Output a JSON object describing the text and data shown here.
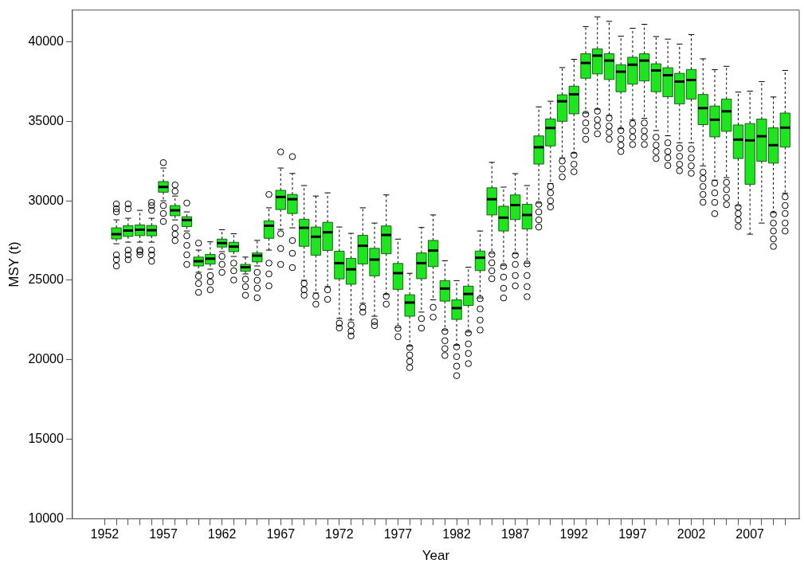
{
  "chart_data": {
    "type": "box",
    "xlabel": "Year",
    "ylabel": "MSY (t)",
    "color": "#1ee61e",
    "categories": [
      "1952",
      null,
      null,
      null,
      null,
      "1957",
      null,
      null,
      null,
      null,
      "1962",
      null,
      null,
      null,
      null,
      "1967",
      null,
      null,
      null,
      null,
      "1972",
      null,
      null,
      null,
      null,
      "1977",
      null,
      null,
      null,
      null,
      "1982",
      null,
      null,
      null,
      null,
      "1987",
      null,
      null,
      null,
      null,
      "1992",
      null,
      null,
      null,
      null,
      "1997",
      null,
      null,
      null,
      null,
      "2002",
      null,
      null,
      null,
      null,
      "2007",
      null,
      null,
      null
    ],
    "ylim": [
      10000,
      42000
    ],
    "yticks": [
      10000,
      15000,
      20000,
      25000,
      30000,
      35000,
      40000
    ],
    "boxes": [
      null,
      {
        "low": 27300,
        "q1": 27600,
        "median": 27900,
        "q3": 28300,
        "high": 28800,
        "outliers": [
          29800,
          29500,
          29300,
          26600,
          26300,
          25900
        ]
      },
      {
        "low": 27400,
        "q1": 27760,
        "median": 28130,
        "q3": 28430,
        "high": 28900,
        "outliers": [
          29800,
          29500,
          26900,
          26600,
          26300
        ]
      },
      {
        "low": 27400,
        "q1": 27810,
        "median": 28180,
        "q3": 28480,
        "high": 29400,
        "outliers": [
          26900,
          26800,
          26600
        ]
      },
      {
        "low": 27400,
        "q1": 27800,
        "median": 28150,
        "q3": 28450,
        "high": 28900,
        "outliers": [
          29900,
          29700,
          29400,
          26900,
          26600,
          26200
        ]
      },
      {
        "low": 30000,
        "q1": 30540,
        "median": 30870,
        "q3": 31210,
        "high": 32060,
        "outliers": [
          32400,
          29700,
          29200,
          28700
        ]
      },
      {
        "low": 28800,
        "q1": 29060,
        "median": 29400,
        "q3": 29700,
        "high": 30300,
        "outliers": [
          31000,
          30600,
          28300,
          27900,
          27500
        ]
      },
      {
        "low": 28100,
        "q1": 28380,
        "median": 28790,
        "q3": 29000,
        "high": 29300,
        "outliers": [
          29860,
          27800,
          27200,
          26600,
          26000
        ]
      },
      {
        "low": 25500,
        "q1": 25900,
        "median": 26200,
        "q3": 26460,
        "high": 26900,
        "outliers": [
          27340,
          25250,
          24800,
          24240
        ]
      },
      {
        "low": 25700,
        "q1": 26020,
        "median": 26360,
        "q3": 26630,
        "high": 27420,
        "outliers": [
          25300,
          24900,
          24400
        ]
      },
      {
        "low": 26800,
        "q1": 27090,
        "median": 27340,
        "q3": 27590,
        "high": 28180,
        "outliers": [
          26500,
          26000,
          25500
        ]
      },
      {
        "low": 26500,
        "q1": 26800,
        "median": 27120,
        "q3": 27390,
        "high": 27930,
        "outliers": [
          26080,
          25600,
          25020
        ]
      },
      {
        "low": 25400,
        "q1": 25570,
        "median": 25820,
        "q3": 26000,
        "high": 26460,
        "outliers": [
          25070,
          24600,
          24060
        ]
      },
      {
        "low": 25900,
        "q1": 26160,
        "median": 26550,
        "q3": 26720,
        "high": 27510,
        "outliers": [
          25500,
          25000,
          24500,
          23900
        ]
      },
      {
        "low": 26900,
        "q1": 27640,
        "median": 28430,
        "q3": 28740,
        "high": 29560,
        "outliers": [
          30400,
          26080,
          25400,
          24650
        ]
      },
      {
        "low": 28200,
        "q1": 29450,
        "median": 30240,
        "q3": 30660,
        "high": 32060,
        "outliers": [
          33080,
          27930,
          27000,
          26000
        ]
      },
      {
        "low": 28300,
        "q1": 29200,
        "median": 30100,
        "q3": 30400,
        "high": 31720,
        "outliers": [
          32780,
          27500,
          26700,
          25800
        ]
      },
      {
        "low": 25000,
        "q1": 27140,
        "median": 28300,
        "q3": 28840,
        "high": 30960,
        "outliers": [
          24800,
          24400,
          24060
        ]
      },
      {
        "low": 24200,
        "q1": 26580,
        "median": 27740,
        "q3": 28350,
        "high": 30300,
        "outliers": [
          24000,
          23500
        ]
      },
      {
        "low": 24600,
        "q1": 26880,
        "median": 28020,
        "q3": 28650,
        "high": 30500,
        "outliers": [
          24400,
          23800
        ]
      },
      {
        "low": 22600,
        "q1": 25090,
        "median": 26080,
        "q3": 26830,
        "high": 28350,
        "outliers": [
          22300,
          22000
        ]
      },
      {
        "low": 22500,
        "q1": 24750,
        "median": 25690,
        "q3": 26380,
        "high": 27950,
        "outliers": [
          22200,
          21800,
          21500
        ]
      },
      {
        "low": 23550,
        "q1": 26030,
        "median": 27170,
        "q3": 27830,
        "high": 29560,
        "outliers": [
          23300,
          23000
        ]
      },
      {
        "low": 22740,
        "q1": 25280,
        "median": 26300,
        "q3": 27010,
        "high": 28600,
        "outliers": [
          22400,
          22150
        ]
      },
      {
        "low": 24110,
        "q1": 26670,
        "median": 27850,
        "q3": 28420,
        "high": 30370,
        "outliers": [
          24000,
          23500
        ]
      },
      {
        "low": 22030,
        "q1": 24430,
        "median": 25450,
        "q3": 26060,
        "high": 27590,
        "outliers": [
          21970,
          21450
        ]
      },
      {
        "low": 20860,
        "q1": 22740,
        "median": 23600,
        "q3": 24090,
        "high": 25440,
        "outliers": [
          20770,
          20300,
          19900,
          19510
        ]
      },
      {
        "low": 23000,
        "q1": 25100,
        "median": 26080,
        "q3": 26720,
        "high": 28320,
        "outliers": [
          22590,
          21990
        ]
      },
      {
        "low": 23770,
        "q1": 25860,
        "median": 26870,
        "q3": 27510,
        "high": 29110,
        "outliers": [
          23300,
          22680
        ]
      },
      {
        "low": 21870,
        "q1": 23690,
        "median": 24480,
        "q3": 24980,
        "high": 26230,
        "outliers": [
          21780,
          21200,
          20700,
          20270
        ]
      },
      {
        "low": 20910,
        "q1": 22540,
        "median": 23250,
        "q3": 23770,
        "high": 24980,
        "outliers": [
          20810,
          20200,
          19600,
          19000
        ]
      },
      {
        "low": 21750,
        "q1": 23420,
        "median": 24140,
        "q3": 24630,
        "high": 25820,
        "outliers": [
          21680,
          21000,
          20400,
          19760
        ]
      },
      {
        "low": 23890,
        "q1": 25610,
        "median": 26420,
        "q3": 26840,
        "high": 28100,
        "outliers": [
          23840,
          23200,
          22500,
          21870
        ]
      },
      {
        "low": 26700,
        "q1": 29110,
        "median": 30100,
        "q3": 30820,
        "high": 32420,
        "outliers": [
          26630,
          26100,
          25600,
          25100
        ]
      },
      {
        "low": 25940,
        "q1": 28100,
        "median": 28940,
        "q3": 29660,
        "high": 30860,
        "outliers": [
          25870,
          25200,
          24500,
          23890
        ]
      },
      {
        "low": 26670,
        "q1": 28820,
        "median": 29730,
        "q3": 30370,
        "high": 31710,
        "outliers": [
          26580,
          26000,
          25300,
          24650
        ]
      },
      {
        "low": 26080,
        "q1": 28230,
        "median": 29110,
        "q3": 29780,
        "high": 30960,
        "outliers": [
          26030,
          25300,
          24600,
          23970
        ]
      },
      {
        "low": 29860,
        "q1": 32310,
        "median": 33370,
        "q3": 34080,
        "high": 35910,
        "outliers": [
          29780,
          29300,
          28800,
          28350
        ]
      },
      {
        "low": 31080,
        "q1": 33450,
        "median": 34580,
        "q3": 35150,
        "high": 36260,
        "outliers": [
          30910,
          30500,
          30000,
          29610
        ]
      },
      {
        "low": 32700,
        "q1": 35000,
        "median": 36260,
        "q3": 36670,
        "high": 38380,
        "outliers": [
          32500,
          32000,
          31500
        ]
      },
      {
        "low": 33000,
        "q1": 35470,
        "median": 36700,
        "q3": 37210,
        "high": 38900,
        "outliers": [
          32880,
          32300,
          31830
        ]
      },
      {
        "low": 35520,
        "q1": 37710,
        "median": 38670,
        "q3": 39250,
        "high": 40960,
        "outliers": [
          35450,
          34900,
          34400,
          33870
        ]
      },
      {
        "low": 35760,
        "q1": 37980,
        "median": 39130,
        "q3": 39560,
        "high": 41570,
        "outliers": [
          35640,
          35100,
          34700,
          34210
        ]
      },
      {
        "low": 35370,
        "q1": 37630,
        "median": 38820,
        "q3": 39250,
        "high": 41290,
        "outliers": [
          35200,
          34700,
          34300,
          33870
        ]
      },
      {
        "low": 34530,
        "q1": 36860,
        "median": 38120,
        "q3": 38560,
        "high": 40360,
        "outliers": [
          34420,
          33900,
          33500,
          33100
        ]
      },
      {
        "low": 35080,
        "q1": 37340,
        "median": 38560,
        "q3": 39030,
        "high": 40850,
        "outliers": [
          34860,
          34400,
          34000,
          33540
        ]
      },
      {
        "low": 35190,
        "q1": 37540,
        "median": 38820,
        "q3": 39250,
        "high": 41100,
        "outliers": [
          34900,
          34400,
          34000,
          33540
        ]
      },
      {
        "low": 34420,
        "q1": 36860,
        "median": 38200,
        "q3": 38620,
        "high": 40330,
        "outliers": [
          34000,
          33500,
          33100,
          32660
        ]
      },
      {
        "low": 34090,
        "q1": 36550,
        "median": 37900,
        "q3": 38370,
        "high": 40170,
        "outliers": [
          33650,
          33100,
          32700,
          32220
        ]
      },
      {
        "low": 33650,
        "q1": 36100,
        "median": 37500,
        "q3": 38020,
        "high": 39860,
        "outliers": [
          33320,
          32800,
          32300,
          31890
        ]
      },
      {
        "low": 33650,
        "q1": 36400,
        "median": 37600,
        "q3": 38260,
        "high": 40450,
        "outliers": [
          33250,
          32700,
          32200,
          31730
        ]
      },
      {
        "low": 32200,
        "q1": 34790,
        "median": 35830,
        "q3": 36690,
        "high": 38930,
        "outliers": [
          31800,
          31400,
          30900,
          30400,
          29910
        ]
      },
      {
        "low": 31300,
        "q1": 34020,
        "median": 35100,
        "q3": 35960,
        "high": 38250,
        "outliers": [
          31110,
          30500,
          29900,
          29190
        ]
      },
      {
        "low": 31460,
        "q1": 34370,
        "median": 35630,
        "q3": 36400,
        "high": 38460,
        "outliers": [
          31160,
          30700,
          30200,
          29760
        ]
      },
      {
        "low": 29700,
        "q1": 32660,
        "median": 33850,
        "q3": 34770,
        "high": 36840,
        "outliers": [
          29590,
          29200,
          28800,
          28380
        ]
      },
      {
        "low": 27900,
        "q1": 31040,
        "median": 33800,
        "q3": 34860,
        "high": 36900
      },
      {
        "low": 28600,
        "q1": 32490,
        "median": 34060,
        "q3": 35140,
        "high": 37500
      },
      {
        "low": 29260,
        "q1": 32370,
        "median": 33500,
        "q3": 34590,
        "high": 36530,
        "outliers": [
          29150,
          28600,
          28100,
          27600,
          27130
        ]
      },
      {
        "low": 30470,
        "q1": 33380,
        "median": 34600,
        "q3": 35520,
        "high": 38200,
        "outliers": [
          30250,
          29700,
          29200,
          28600,
          28100
        ]
      }
    ]
  }
}
